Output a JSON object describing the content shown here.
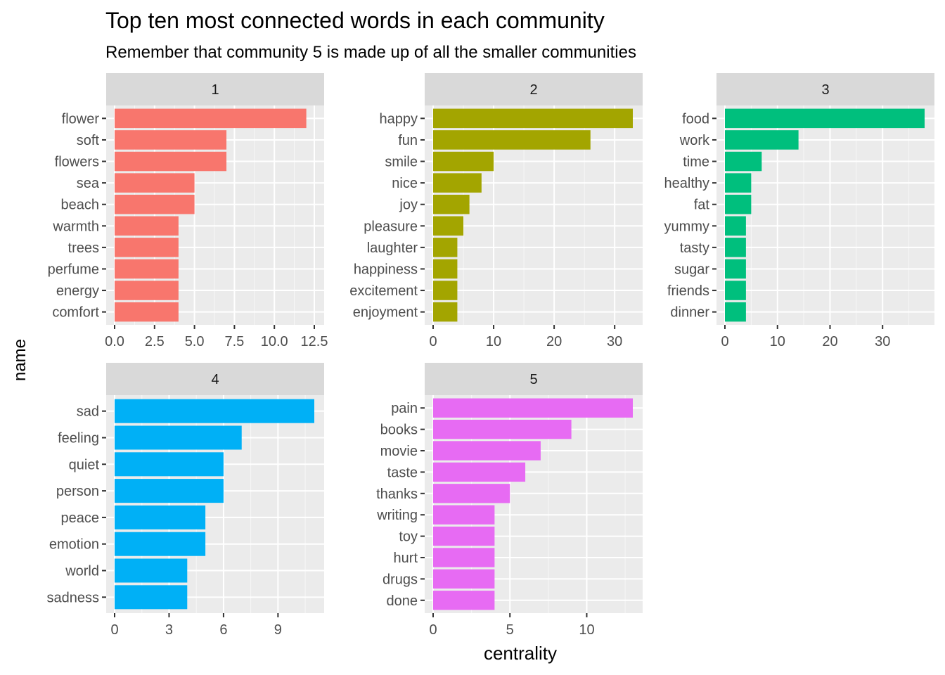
{
  "chart_data": {
    "type": "bar",
    "title": "Top ten most connected words in each community",
    "subtitle": "Remember that community 5 is made up of all the smaller communities",
    "xlabel": "centrality",
    "ylabel": "name",
    "grid": true,
    "legend": "none",
    "facets": [
      {
        "label": "1",
        "color": "#F8766D",
        "xlim": [
          0,
          12.5
        ],
        "ticks": [
          "0.0",
          "2.5",
          "5.0",
          "7.5",
          "10.0",
          "12.5"
        ],
        "tick_values": [
          0,
          2.5,
          5,
          7.5,
          10,
          12.5
        ],
        "categories": [
          "flower",
          "soft",
          "flowers",
          "sea",
          "beach",
          "warmth",
          "trees",
          "perfume",
          "energy",
          "comfort"
        ],
        "values": [
          12,
          7,
          7,
          5,
          5,
          4,
          4,
          4,
          4,
          4
        ]
      },
      {
        "label": "2",
        "color": "#A3A500",
        "xlim": [
          0,
          33
        ],
        "ticks": [
          "0",
          "10",
          "20",
          "30"
        ],
        "tick_values": [
          0,
          10,
          20,
          30
        ],
        "categories": [
          "happy",
          "fun",
          "smile",
          "nice",
          "joy",
          "pleasure",
          "laughter",
          "happiness",
          "excitement",
          "enjoyment"
        ],
        "values": [
          33,
          26,
          10,
          8,
          6,
          5,
          4,
          4,
          4,
          4
        ]
      },
      {
        "label": "3",
        "color": "#00BF7D",
        "xlim": [
          0,
          38
        ],
        "ticks": [
          "0",
          "10",
          "20",
          "30"
        ],
        "tick_values": [
          0,
          10,
          20,
          30
        ],
        "categories": [
          "food",
          "work",
          "time",
          "healthy",
          "fat",
          "yummy",
          "tasty",
          "sugar",
          "friends",
          "dinner"
        ],
        "values": [
          38,
          14,
          7,
          5,
          5,
          4,
          4,
          4,
          4,
          4
        ]
      },
      {
        "label": "4",
        "color": "#00B0F6",
        "xlim": [
          0,
          11
        ],
        "ticks": [
          "0",
          "3",
          "6",
          "9"
        ],
        "tick_values": [
          0,
          3,
          6,
          9
        ],
        "categories": [
          "sad",
          "feeling",
          "quiet",
          "person",
          "peace",
          "emotion",
          "world",
          "sadness"
        ],
        "values": [
          11,
          7,
          6,
          6,
          5,
          5,
          4,
          4
        ]
      },
      {
        "label": "5",
        "color": "#E76BF3",
        "xlim": [
          0,
          13
        ],
        "ticks": [
          "0",
          "5",
          "10"
        ],
        "tick_values": [
          0,
          5,
          10
        ],
        "categories": [
          "pain",
          "books",
          "movie",
          "taste",
          "thanks",
          "writing",
          "toy",
          "hurt",
          "drugs",
          "done"
        ],
        "values": [
          13,
          9,
          7,
          6,
          5,
          4,
          4,
          4,
          4,
          4
        ]
      }
    ]
  }
}
